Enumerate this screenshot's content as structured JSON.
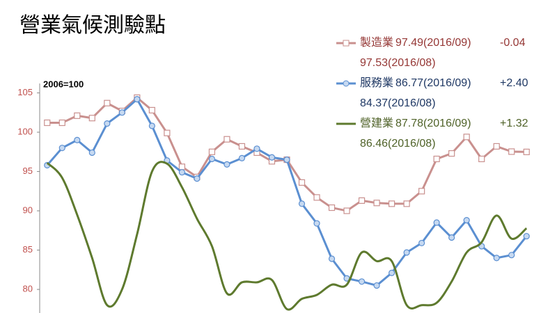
{
  "chart_data": {
    "type": "line",
    "title": "營業氣候測驗點",
    "note": "2006=100",
    "categories": [
      null,
      null,
      null,
      null,
      null,
      null,
      null,
      null,
      null,
      null,
      null,
      null,
      null,
      null,
      null,
      null,
      null,
      null,
      null,
      null,
      null,
      null,
      null,
      null,
      null,
      null,
      null,
      null,
      null,
      null,
      null,
      null,
      null
    ],
    "ylim": [
      77,
      106.2
    ],
    "yticks": [
      80,
      85,
      90,
      95,
      100,
      105
    ],
    "grid": false,
    "series": [
      {
        "name": "製造業",
        "color": "#c9908e",
        "text_color": "#953735",
        "marker": "square",
        "smooth": false,
        "current": "97.49(2016/09)",
        "change": "-0.04",
        "previous": "97.53(2016/08)",
        "values": [
          101.2,
          101.2,
          102.1,
          101.8,
          103.7,
          102.7,
          104.4,
          102.8,
          99.9,
          95.6,
          94.3,
          97.5,
          99.1,
          98.2,
          97.4,
          96.3,
          96.5,
          93.6,
          91.7,
          90.4,
          90.0,
          91.3,
          91.0,
          90.9,
          90.9,
          92.5,
          96.6,
          97.3,
          99.4,
          96.6,
          98.2,
          97.53,
          97.49
        ]
      },
      {
        "name": "服務業",
        "color": "#5b8fd1",
        "text_color": "#1f3864",
        "marker": "circle",
        "smooth": false,
        "current": "86.77(2016/09)",
        "change": "+2.40",
        "previous": "84.37(2016/08)",
        "values": [
          95.8,
          98.0,
          99.0,
          97.4,
          101.1,
          102.5,
          104.2,
          100.8,
          96.4,
          94.9,
          94.1,
          96.6,
          95.9,
          96.7,
          97.9,
          96.8,
          96.5,
          90.9,
          88.4,
          83.9,
          81.4,
          81.0,
          80.5,
          82.1,
          84.7,
          85.9,
          88.5,
          86.6,
          88.8,
          85.5,
          84.0,
          84.37,
          86.77
        ]
      },
      {
        "name": "營建業",
        "color": "#5e7a2e",
        "text_color": "#4f6228",
        "marker": "none",
        "smooth": true,
        "current": "87.78(2016/09)",
        "change": "+1.32",
        "previous": "86.46(2016/08)",
        "values": [
          96.1,
          94.2,
          89.5,
          84.0,
          78.0,
          80.0,
          87.0,
          95.0,
          96.0,
          93.0,
          89.0,
          85.5,
          79.5,
          80.9,
          80.9,
          81.2,
          77.5,
          78.8,
          79.3,
          80.6,
          80.6,
          84.7,
          83.6,
          83.6,
          78.0,
          78.0,
          78.3,
          81.0,
          84.7,
          86.0,
          89.4,
          86.46,
          87.78
        ]
      }
    ]
  }
}
